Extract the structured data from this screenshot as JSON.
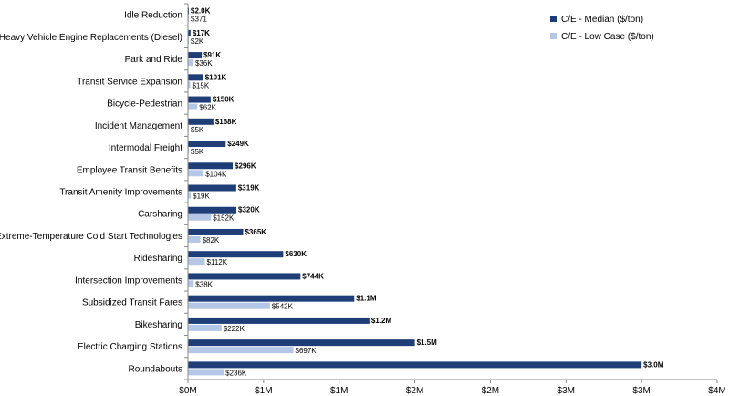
{
  "chart_data": {
    "type": "bar",
    "orientation": "horizontal",
    "title": "",
    "xlabel": "",
    "ylabel": "",
    "xlim": [
      0,
      3500000
    ],
    "x_ticks": [
      {
        "value": 0,
        "label": "$0M"
      },
      {
        "value": 500000,
        "label": "$1M"
      },
      {
        "value": 1000000,
        "label": "$1M"
      },
      {
        "value": 1500000,
        "label": "$2M"
      },
      {
        "value": 2000000,
        "label": "$2M"
      },
      {
        "value": 2500000,
        "label": "$3M"
      },
      {
        "value": 3000000,
        "label": "$3M"
      },
      {
        "value": 3500000,
        "label": "$4M"
      }
    ],
    "grid": false,
    "legend": "top-right",
    "categories": [
      "Idle Reduction",
      "Heavy Vehicle Engine Replacements (Diesel)",
      "Park and Ride",
      "Transit Service Expansion",
      "Bicycle-Pedestrian",
      "Incident Management",
      "Intermodal Freight",
      "Employee Transit Benefits",
      "Transit Amenity Improvements",
      "Carsharing",
      "Extreme-Temperature Cold Start Technologies",
      "Ridesharing",
      "Intersection Improvements",
      "Subsidized Transit Fares",
      "Bikesharing",
      "Electric Charging Stations",
      "Roundabouts"
    ],
    "series": [
      {
        "name": "C/E - Median ($/ton)",
        "color": "#1f3e78",
        "values": [
          2000,
          17000,
          91000,
          101000,
          150000,
          168000,
          249000,
          296000,
          319000,
          320000,
          365000,
          630000,
          744000,
          1100000,
          1200000,
          1500000,
          3000000
        ],
        "labels": [
          "$2.0K",
          "$17K",
          "$91K",
          "$101K",
          "$150K",
          "$168K",
          "$249K",
          "$296K",
          "$319K",
          "$320K",
          "$365K",
          "$630K",
          "$744K",
          "$1.1M",
          "$1.2M",
          "$1.5M",
          "$3.0M"
        ]
      },
      {
        "name": "C/E - Low Case ($/ton)",
        "color": "#b4c7e7",
        "values": [
          371,
          2000,
          36000,
          15000,
          62000,
          5000,
          5000,
          104000,
          19000,
          152000,
          82000,
          112000,
          38000,
          542000,
          222000,
          697000,
          236000
        ],
        "labels": [
          "$371",
          "$2K",
          "$36K",
          "$15K",
          "$62K",
          "$5K",
          "$5K",
          "$104K",
          "$19K",
          "$152K",
          "$82K",
          "$112K",
          "$38K",
          "$542K",
          "$222K",
          "$697K",
          "$236K"
        ]
      }
    ]
  }
}
